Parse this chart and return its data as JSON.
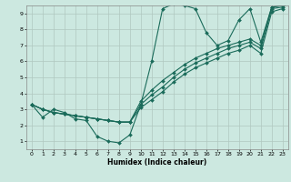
{
  "xlabel": "Humidex (Indice chaleur)",
  "ylabel": "",
  "xlim": [
    -0.5,
    23.5
  ],
  "ylim": [
    0.5,
    9.5
  ],
  "xticks": [
    0,
    1,
    2,
    3,
    4,
    5,
    6,
    7,
    8,
    9,
    10,
    11,
    12,
    13,
    14,
    15,
    16,
    17,
    18,
    19,
    20,
    21,
    22,
    23
  ],
  "yticks": [
    1,
    2,
    3,
    4,
    5,
    6,
    7,
    8,
    9
  ],
  "background_color": "#cce8e0",
  "grid_color": "#b0c8c0",
  "line_color": "#1a6b5a",
  "lines": [
    {
      "x": [
        0,
        1,
        2,
        3,
        4,
        5,
        6,
        7,
        8,
        9,
        10,
        11,
        12,
        13,
        14,
        15,
        16,
        17,
        18,
        19,
        20,
        21,
        22,
        23
      ],
      "y": [
        3.3,
        2.5,
        3.0,
        2.8,
        2.4,
        2.3,
        1.3,
        1.0,
        0.9,
        1.4,
        3.3,
        6.0,
        9.3,
        9.6,
        9.5,
        9.3,
        7.8,
        7.0,
        7.3,
        8.6,
        9.3,
        7.2,
        9.4,
        9.5
      ]
    },
    {
      "x": [
        0,
        1,
        2,
        3,
        4,
        5,
        6,
        7,
        8,
        9,
        10,
        11,
        12,
        13,
        14,
        15,
        16,
        17,
        18,
        19,
        20,
        21,
        22,
        23
      ],
      "y": [
        3.3,
        3.0,
        2.8,
        2.7,
        2.6,
        2.5,
        2.4,
        2.3,
        2.2,
        2.2,
        3.5,
        4.2,
        4.8,
        5.3,
        5.8,
        6.2,
        6.5,
        6.8,
        7.0,
        7.2,
        7.4,
        7.0,
        9.4,
        9.5
      ]
    },
    {
      "x": [
        0,
        1,
        2,
        3,
        4,
        5,
        6,
        7,
        8,
        9,
        10,
        11,
        12,
        13,
        14,
        15,
        16,
        17,
        18,
        19,
        20,
        21,
        22,
        23
      ],
      "y": [
        3.3,
        3.0,
        2.8,
        2.7,
        2.6,
        2.5,
        2.4,
        2.3,
        2.2,
        2.2,
        3.3,
        3.9,
        4.4,
        5.0,
        5.5,
        5.9,
        6.2,
        6.5,
        6.8,
        7.0,
        7.2,
        6.8,
        9.3,
        9.4
      ]
    },
    {
      "x": [
        0,
        1,
        2,
        3,
        4,
        5,
        6,
        7,
        8,
        9,
        10,
        11,
        12,
        13,
        14,
        15,
        16,
        17,
        18,
        19,
        20,
        21,
        22,
        23
      ],
      "y": [
        3.3,
        3.0,
        2.8,
        2.7,
        2.6,
        2.5,
        2.4,
        2.3,
        2.2,
        2.2,
        3.1,
        3.6,
        4.1,
        4.7,
        5.2,
        5.6,
        5.9,
        6.2,
        6.5,
        6.7,
        7.0,
        6.5,
        9.1,
        9.3
      ]
    }
  ]
}
